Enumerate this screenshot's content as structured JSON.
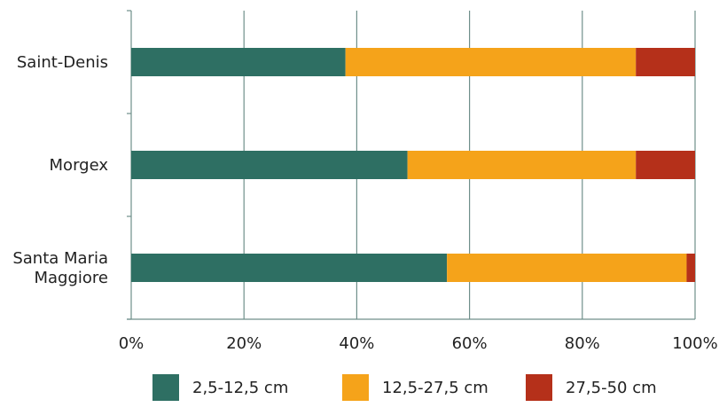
{
  "chart_data": {
    "type": "bar",
    "orientation": "horizontal",
    "stacked": true,
    "percent": true,
    "categories": [
      "Saint-Denis",
      "Morgex",
      "Santa Maria Maggiore"
    ],
    "category_lines": [
      [
        "Saint-Denis"
      ],
      [
        "Morgex"
      ],
      [
        "Santa Maria",
        "Maggiore"
      ]
    ],
    "series": [
      {
        "name": "2,5-12,5 cm",
        "color": "#2e6f63",
        "values": [
          38,
          49,
          56
        ]
      },
      {
        "name": "12,5-27,5 cm",
        "color": "#f5a31a",
        "values": [
          51.5,
          40.5,
          42.5
        ]
      },
      {
        "name": "27,5-50 cm",
        "color": "#b5301a",
        "values": [
          10.5,
          10.5,
          1.5
        ]
      }
    ],
    "xlim": [
      0,
      100
    ],
    "x_ticks": [
      0,
      20,
      40,
      60,
      80,
      100
    ],
    "x_tick_labels": [
      "0%",
      "20%",
      "40%",
      "60%",
      "80%",
      "100%"
    ],
    "grid": "vertical",
    "legend_position": "bottom",
    "title": "",
    "xlabel": "",
    "ylabel": ""
  }
}
